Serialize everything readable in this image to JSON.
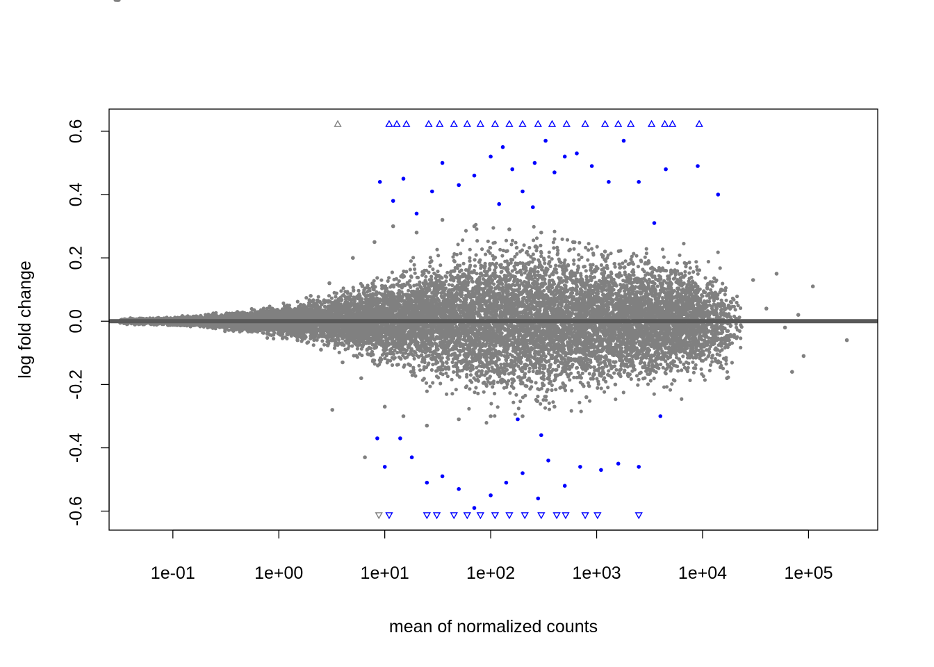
{
  "chart_data": {
    "type": "scatter",
    "title": "",
    "xlabel": "mean of normalized counts",
    "ylabel": "log fold change",
    "xscale": "log10",
    "xlim": [
      0.025,
      450000
    ],
    "ylim": [
      -0.66,
      0.67
    ],
    "x_ticks": [
      0.1,
      1,
      10,
      100,
      1000,
      10000,
      100000
    ],
    "x_tick_labels": [
      "1e-01",
      "1e+00",
      "1e+01",
      "1e+02",
      "1e+03",
      "1e+04",
      "1e+05"
    ],
    "y_ticks": [
      -0.6,
      -0.4,
      -0.2,
      0.0,
      0.2,
      0.4,
      0.6
    ],
    "y_tick_labels": [
      "-0.6",
      "-0.4",
      "-0.2",
      "0.0",
      "0.2",
      "0.4",
      "0.6"
    ],
    "grid": false,
    "legend": "none",
    "reference_line": {
      "y": 0,
      "color": "#595959"
    },
    "colors": {
      "not_significant": "#808080",
      "significant": "#0000ff"
    },
    "series": [
      {
        "category": "not-significant",
        "color": "#808080",
        "points": [
          [
            0.04,
            0.001
          ],
          [
            0.05,
            -0.002
          ],
          [
            0.07,
            0.003
          ],
          [
            0.09,
            -0.004
          ],
          [
            0.12,
            0.005
          ],
          [
            0.15,
            -0.006
          ],
          [
            0.2,
            0.008
          ],
          [
            0.25,
            -0.009
          ],
          [
            0.3,
            0.012
          ],
          [
            0.4,
            -0.014
          ],
          [
            0.5,
            0.018
          ],
          [
            0.6,
            -0.02
          ],
          [
            0.8,
            0.03
          ],
          [
            1.0,
            -0.035
          ],
          [
            1.2,
            0.05
          ],
          [
            1.5,
            -0.06
          ],
          [
            2.0,
            0.08
          ],
          [
            2.5,
            -0.09
          ],
          [
            3.0,
            0.12
          ],
          [
            4.0,
            -0.13
          ],
          [
            5.0,
            0.2
          ],
          [
            6.0,
            -0.18
          ],
          [
            8.0,
            0.25
          ],
          [
            10,
            -0.27
          ],
          [
            12,
            0.3
          ],
          [
            15,
            -0.3
          ],
          [
            20,
            0.28
          ],
          [
            25,
            -0.33
          ],
          [
            35,
            0.32
          ],
          [
            50,
            -0.31
          ],
          [
            70,
            0.3
          ],
          [
            100,
            -0.3
          ],
          [
            150,
            0.29
          ],
          [
            200,
            -0.3
          ],
          [
            300,
            0.28
          ],
          [
            400,
            -0.27
          ],
          [
            600,
            0.25
          ],
          [
            800,
            -0.24
          ],
          [
            1200,
            0.22
          ],
          [
            1500,
            -0.2
          ],
          [
            2000,
            0.18
          ],
          [
            3000,
            -0.15
          ],
          [
            4000,
            0.12
          ],
          [
            6000,
            -0.12
          ],
          [
            8000,
            0.1
          ],
          [
            10000,
            -0.1
          ],
          [
            15000,
            0.1
          ],
          [
            20000,
            -0.05
          ],
          [
            30000,
            0.13
          ],
          [
            40000,
            0.04
          ],
          [
            50000,
            0.15
          ],
          [
            60000,
            -0.02
          ],
          [
            70000,
            -0.16
          ],
          [
            80000,
            0.02
          ],
          [
            90000,
            -0.11
          ],
          [
            110000,
            0.11
          ],
          [
            230000,
            -0.06
          ],
          [
            6.5,
            -0.43
          ],
          [
            3.2,
            -0.28
          ],
          [
            17000,
            -0.18
          ]
        ]
      },
      {
        "category": "significant",
        "color": "#0000ff",
        "points": [
          [
            9,
            0.44
          ],
          [
            12,
            0.38
          ],
          [
            15,
            0.45
          ],
          [
            20,
            0.34
          ],
          [
            28,
            0.41
          ],
          [
            35,
            0.5
          ],
          [
            50,
            0.43
          ],
          [
            70,
            0.46
          ],
          [
            100,
            0.52
          ],
          [
            130,
            0.55
          ],
          [
            160,
            0.48
          ],
          [
            200,
            0.41
          ],
          [
            260,
            0.5
          ],
          [
            330,
            0.57
          ],
          [
            400,
            0.47
          ],
          [
            500,
            0.52
          ],
          [
            650,
            0.53
          ],
          [
            900,
            0.49
          ],
          [
            1300,
            0.44
          ],
          [
            1800,
            0.57
          ],
          [
            2500,
            0.44
          ],
          [
            3500,
            0.31
          ],
          [
            4500,
            0.48
          ],
          [
            9000,
            0.49
          ],
          [
            14000,
            0.4
          ],
          [
            10,
            -0.46
          ],
          [
            14,
            -0.37
          ],
          [
            18,
            -0.43
          ],
          [
            25,
            -0.51
          ],
          [
            35,
            -0.49
          ],
          [
            50,
            -0.53
          ],
          [
            70,
            -0.59
          ],
          [
            100,
            -0.55
          ],
          [
            140,
            -0.51
          ],
          [
            200,
            -0.48
          ],
          [
            280,
            -0.56
          ],
          [
            350,
            -0.44
          ],
          [
            500,
            -0.52
          ],
          [
            700,
            -0.46
          ],
          [
            1100,
            -0.47
          ],
          [
            1600,
            -0.45
          ],
          [
            2500,
            -0.46
          ],
          [
            4000,
            -0.3
          ],
          [
            8.5,
            -0.37
          ],
          [
            120,
            0.37
          ],
          [
            250,
            0.36
          ],
          [
            300,
            -0.36
          ],
          [
            180,
            -0.31
          ]
        ]
      }
    ],
    "clipped_points": {
      "description": "",
      "upper": [
        {
          "x": 3.6,
          "color": "#808080"
        },
        {
          "x": 11,
          "color": "#0000ff"
        },
        {
          "x": 13,
          "color": "#0000ff"
        },
        {
          "x": 16,
          "color": "#0000ff"
        },
        {
          "x": 26,
          "color": "#0000ff"
        },
        {
          "x": 33,
          "color": "#0000ff"
        },
        {
          "x": 45,
          "color": "#0000ff"
        },
        {
          "x": 60,
          "color": "#0000ff"
        },
        {
          "x": 80,
          "color": "#0000ff"
        },
        {
          "x": 110,
          "color": "#0000ff"
        },
        {
          "x": 150,
          "color": "#0000ff"
        },
        {
          "x": 200,
          "color": "#0000ff"
        },
        {
          "x": 280,
          "color": "#0000ff"
        },
        {
          "x": 380,
          "color": "#0000ff"
        },
        {
          "x": 520,
          "color": "#0000ff"
        },
        {
          "x": 780,
          "color": "#0000ff"
        },
        {
          "x": 1200,
          "color": "#0000ff"
        },
        {
          "x": 1600,
          "color": "#0000ff"
        },
        {
          "x": 2100,
          "color": "#0000ff"
        },
        {
          "x": 3300,
          "color": "#0000ff"
        },
        {
          "x": 4400,
          "color": "#0000ff"
        },
        {
          "x": 5200,
          "color": "#0000ff"
        },
        {
          "x": 9300,
          "color": "#0000ff"
        }
      ],
      "lower": [
        {
          "x": 8.8,
          "color": "#808080"
        },
        {
          "x": 11,
          "color": "#0000ff"
        },
        {
          "x": 25,
          "color": "#0000ff"
        },
        {
          "x": 31,
          "color": "#0000ff"
        },
        {
          "x": 45,
          "color": "#0000ff"
        },
        {
          "x": 60,
          "color": "#0000ff"
        },
        {
          "x": 80,
          "color": "#0000ff"
        },
        {
          "x": 110,
          "color": "#0000ff"
        },
        {
          "x": 150,
          "color": "#0000ff"
        },
        {
          "x": 210,
          "color": "#0000ff"
        },
        {
          "x": 300,
          "color": "#0000ff"
        },
        {
          "x": 420,
          "color": "#0000ff"
        },
        {
          "x": 510,
          "color": "#0000ff"
        },
        {
          "x": 780,
          "color": "#0000ff"
        },
        {
          "x": 1020,
          "color": "#0000ff"
        },
        {
          "x": 2500,
          "color": "#0000ff"
        }
      ]
    }
  }
}
